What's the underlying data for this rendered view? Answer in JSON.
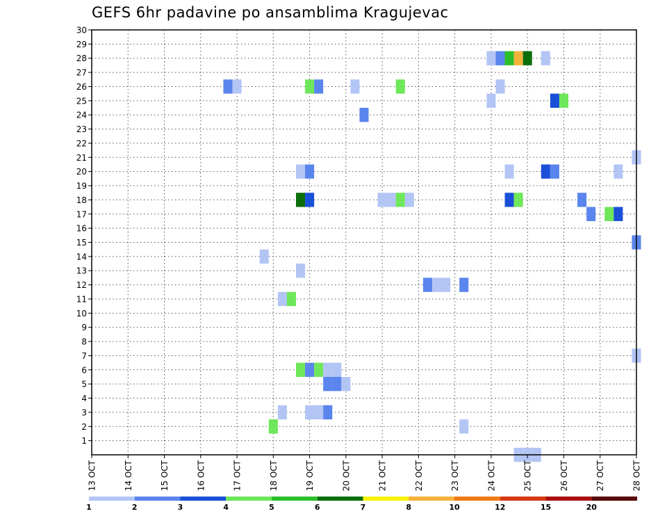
{
  "chart_data": {
    "type": "heatmap",
    "title": "GEFS 6hr padavine po ansamblima Kragujevac",
    "xlabel": "",
    "ylabel": "",
    "x_tick_labels": [
      "13 OCT",
      "14 OCT",
      "15 OCT",
      "16 OCT",
      "17 OCT",
      "18 OCT",
      "19 OCT",
      "20 OCT",
      "21 OCT",
      "22 OCT",
      "23 OCT",
      "24 OCT",
      "25 OCT",
      "26 OCT",
      "27 OCT",
      "28 OCT"
    ],
    "xlim": [
      0,
      60
    ],
    "ylim": [
      0,
      30
    ],
    "y_ticks": [
      1,
      2,
      3,
      4,
      5,
      6,
      7,
      8,
      9,
      10,
      11,
      12,
      13,
      14,
      15,
      16,
      17,
      18,
      19,
      20,
      21,
      22,
      23,
      24,
      25,
      26,
      27,
      28,
      29,
      30
    ],
    "grid": true,
    "legend_position": "bottom",
    "legend": {
      "labels": [
        "1",
        "2",
        "3",
        "4",
        "5",
        "6",
        "7",
        "8",
        "10",
        "12",
        "15",
        "20"
      ],
      "colors": [
        "#b3c5f5",
        "#5a85ec",
        "#1a4fd8",
        "#6ee75a",
        "#2bbf2b",
        "#0b6e0b",
        "#f5f500",
        "#f5b23a",
        "#f07a14",
        "#d23a12",
        "#a81010",
        "#5a0a0a"
      ]
    },
    "cells": [
      {
        "member": 28,
        "step": 44,
        "value": 1.5
      },
      {
        "member": 28,
        "step": 45,
        "value": 2.5
      },
      {
        "member": 28,
        "step": 46,
        "value": 5.5
      },
      {
        "member": 28,
        "step": 47,
        "value": 9
      },
      {
        "member": 28,
        "step": 48,
        "value": 6.5
      },
      {
        "member": 28,
        "step": 50,
        "value": 1.5
      },
      {
        "member": 26,
        "step": 15,
        "value": 2.5
      },
      {
        "member": 26,
        "step": 16,
        "value": 1.5
      },
      {
        "member": 26,
        "step": 24,
        "value": 4.5
      },
      {
        "member": 26,
        "step": 25,
        "value": 2.5
      },
      {
        "member": 26,
        "step": 29,
        "value": 1.5
      },
      {
        "member": 26,
        "step": 34,
        "value": 4.5
      },
      {
        "member": 26,
        "step": 45,
        "value": 1.5
      },
      {
        "member": 25,
        "step": 44,
        "value": 1.5
      },
      {
        "member": 25,
        "step": 51,
        "value": 3.5
      },
      {
        "member": 25,
        "step": 52,
        "value": 4.5
      },
      {
        "member": 24,
        "step": 30,
        "value": 2.5
      },
      {
        "member": 21,
        "step": 60,
        "value": 1.5
      },
      {
        "member": 20,
        "step": 23,
        "value": 1.5
      },
      {
        "member": 20,
        "step": 24,
        "value": 2.5
      },
      {
        "member": 20,
        "step": 46,
        "value": 1.5
      },
      {
        "member": 20,
        "step": 50,
        "value": 3.5
      },
      {
        "member": 20,
        "step": 51,
        "value": 2.5
      },
      {
        "member": 20,
        "step": 58,
        "value": 1.5
      },
      {
        "member": 18,
        "step": 23,
        "value": 6.5
      },
      {
        "member": 18,
        "step": 24,
        "value": 3.5
      },
      {
        "member": 18,
        "step": 32,
        "value": 1.5
      },
      {
        "member": 18,
        "step": 33,
        "value": 1.5
      },
      {
        "member": 18,
        "step": 34,
        "value": 4.5
      },
      {
        "member": 18,
        "step": 35,
        "value": 1.5
      },
      {
        "member": 18,
        "step": 46,
        "value": 3.5
      },
      {
        "member": 18,
        "step": 47,
        "value": 4.5
      },
      {
        "member": 18,
        "step": 54,
        "value": 2.5
      },
      {
        "member": 17,
        "step": 55,
        "value": 2.5
      },
      {
        "member": 17,
        "step": 57,
        "value": 4.5
      },
      {
        "member": 17,
        "step": 58,
        "value": 3.5
      },
      {
        "member": 15,
        "step": 60,
        "value": 2.5
      },
      {
        "member": 14,
        "step": 19,
        "value": 1.5
      },
      {
        "member": 13,
        "step": 23,
        "value": 1.5
      },
      {
        "member": 12,
        "step": 37,
        "value": 2.5
      },
      {
        "member": 12,
        "step": 38,
        "value": 1.5
      },
      {
        "member": 12,
        "step": 39,
        "value": 1.5
      },
      {
        "member": 12,
        "step": 41,
        "value": 2.5
      },
      {
        "member": 11,
        "step": 21,
        "value": 1.5
      },
      {
        "member": 11,
        "step": 22,
        "value": 4.5
      },
      {
        "member": 7,
        "step": 60,
        "value": 1.5
      },
      {
        "member": 6,
        "step": 23,
        "value": 4.5
      },
      {
        "member": 6,
        "step": 24,
        "value": 2.5
      },
      {
        "member": 6,
        "step": 25,
        "value": 4.5
      },
      {
        "member": 6,
        "step": 26,
        "value": 1.5
      },
      {
        "member": 6,
        "step": 27,
        "value": 1.5
      },
      {
        "member": 5,
        "step": 26,
        "value": 2.5
      },
      {
        "member": 5,
        "step": 27,
        "value": 2.5
      },
      {
        "member": 5,
        "step": 28,
        "value": 1.5
      },
      {
        "member": 3,
        "step": 21,
        "value": 1.5
      },
      {
        "member": 3,
        "step": 24,
        "value": 1.5
      },
      {
        "member": 3,
        "step": 25,
        "value": 1.5
      },
      {
        "member": 3,
        "step": 26,
        "value": 2.5
      },
      {
        "member": 2,
        "step": 20,
        "value": 4.5
      },
      {
        "member": 2,
        "step": 41,
        "value": 1.5
      },
      {
        "member": 0,
        "step": 47,
        "value": 1.5
      },
      {
        "member": 0,
        "step": 48,
        "value": 1.5
      },
      {
        "member": 0,
        "step": 49,
        "value": 1.5
      }
    ]
  }
}
